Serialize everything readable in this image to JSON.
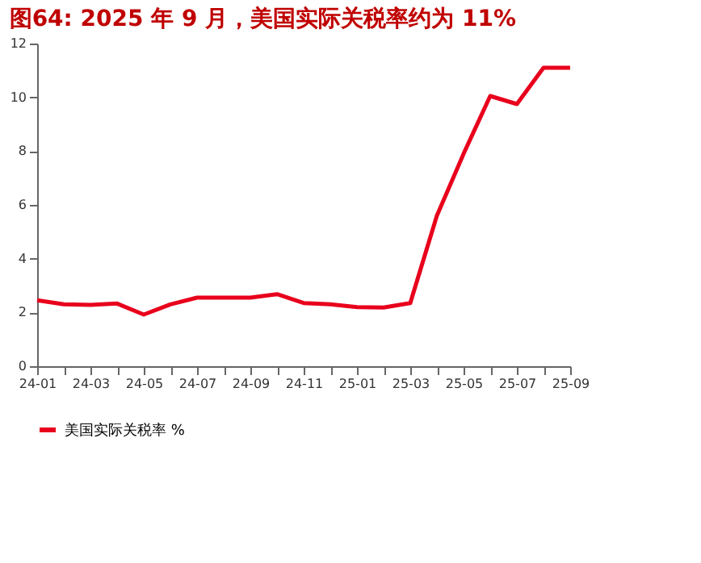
{
  "chart_data": {
    "type": "line",
    "title": "图64:   2025 年 9 月，美国实际关税率约为 11%",
    "categories": [
      "24-01",
      null,
      "24-03",
      null,
      "24-05",
      null,
      "24-07",
      null,
      "24-09",
      null,
      "24-11",
      null,
      "25-01",
      null,
      "25-03",
      null,
      "25-05",
      null,
      "25-07",
      null,
      "25-09"
    ],
    "series": [
      {
        "name": "美国实际关税率 %",
        "color": "#e8001c",
        "values": [
          2.45,
          2.3,
          2.28,
          2.33,
          1.92,
          2.3,
          2.55,
          2.55,
          2.55,
          2.68,
          2.35,
          2.3,
          2.2,
          2.18,
          2.35,
          5.6,
          7.9,
          10.05,
          9.75,
          11.1,
          11.1
        ]
      }
    ],
    "ylim": [
      0,
      12
    ],
    "yticks": [
      0,
      2,
      4,
      6,
      8,
      10,
      12
    ],
    "grid": false,
    "legend": "bottom",
    "marker": "none",
    "line_style": "solid"
  }
}
